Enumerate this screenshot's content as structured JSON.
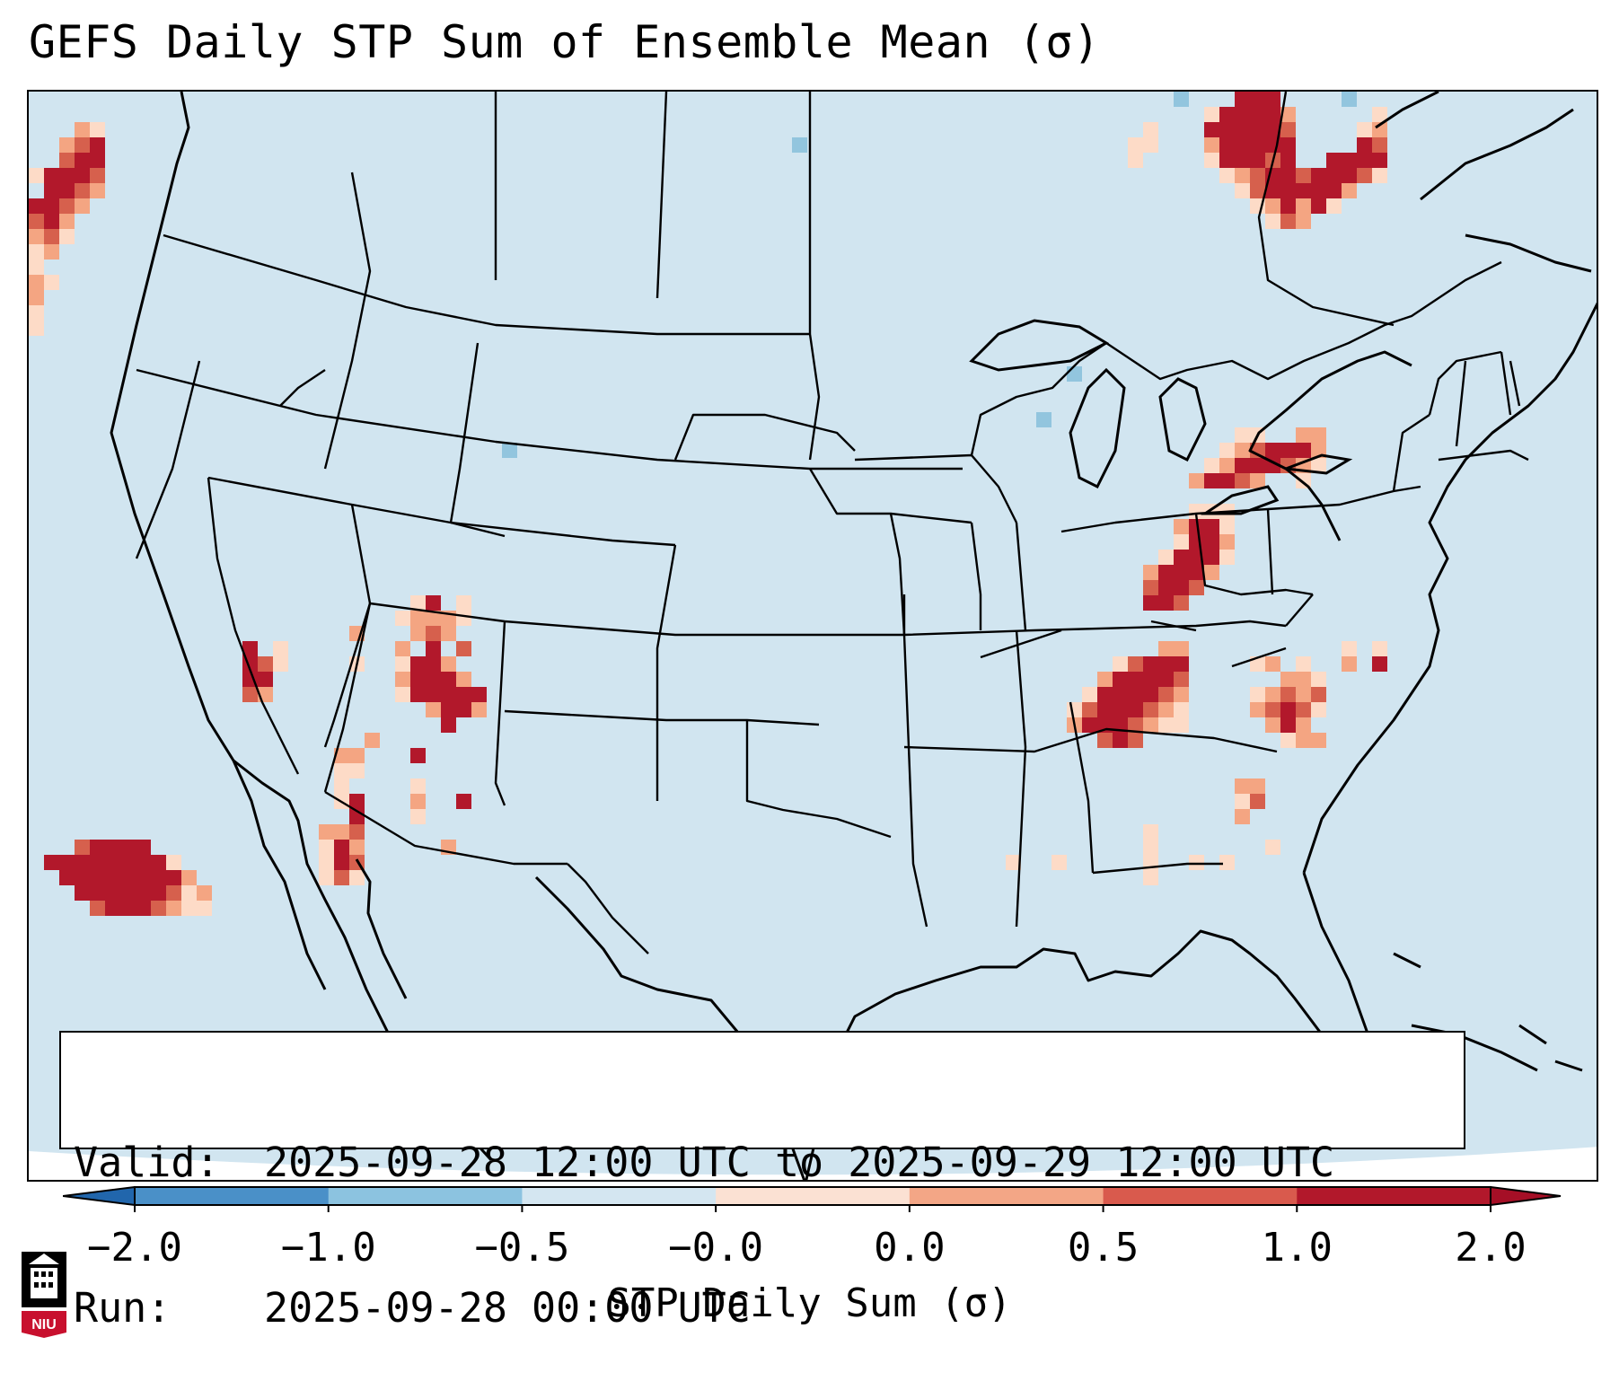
{
  "title": "GEFS Daily STP Sum of Ensemble Mean (σ)",
  "info": {
    "valid_key": "Valid:",
    "valid_value": "2025-09-28 12:00 UTC to 2025-09-29 12:00 UTC",
    "run_key": "Run:",
    "run_value": "2025-09-28 00:00 UTC"
  },
  "colorbar": {
    "label": "STP Daily Sum (σ)",
    "ticks": [
      "−2.0",
      "−1.0",
      "−0.5",
      "−0.0",
      "0.0",
      "0.5",
      "1.0",
      "2.0"
    ],
    "colors": [
      "#4a90c8",
      "#8cc3e0",
      "#d4e6f1",
      "#fbe1d3",
      "#f3a686",
      "#d95a4d",
      "#b2182b"
    ]
  },
  "logo": {
    "text": "NIU",
    "icon": "university-building-icon"
  },
  "colors": {
    "background": "#d1e5f0",
    "ocean_outside": "#ffffff",
    "positive_low": "#fddbc7",
    "positive_mid": "#f4a582",
    "positive_high": "#d6604d",
    "positive_max": "#b2182b",
    "negative": "#92c5de"
  }
}
